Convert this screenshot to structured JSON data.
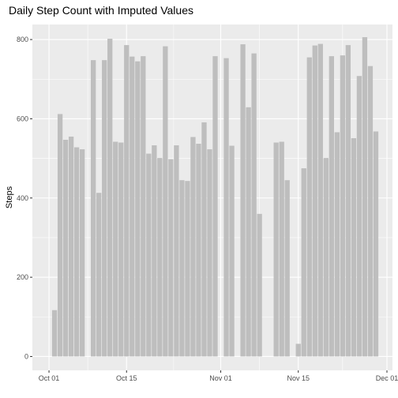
{
  "chart_data": {
    "type": "bar",
    "title": "Daily Step Count with Imputed Values",
    "xlabel": "",
    "ylabel": "Steps",
    "ylim": [
      -35,
      838
    ],
    "yticks": [
      0,
      200,
      400,
      600,
      800
    ],
    "ytick_labels": [
      "0",
      "200",
      "400",
      "600",
      "800"
    ],
    "xlim": [
      "2012-09-28",
      "2012-12-02"
    ],
    "xticks": [
      "2012-10-01",
      "2012-10-15",
      "2012-11-01",
      "2012-11-15",
      "2012-12-01"
    ],
    "xtick_labels": [
      "Oct 01",
      "Oct 15",
      "Nov 01",
      "Nov 15",
      "Dec 01"
    ],
    "grid": true,
    "bar_color": "#bebebe",
    "panel_color": "#ebebeb",
    "x": [
      "2012-10-01",
      "2012-10-02",
      "2012-10-03",
      "2012-10-04",
      "2012-10-05",
      "2012-10-06",
      "2012-10-07",
      "2012-10-08",
      "2012-10-09",
      "2012-10-10",
      "2012-10-11",
      "2012-10-12",
      "2012-10-13",
      "2012-10-14",
      "2012-10-15",
      "2012-10-16",
      "2012-10-17",
      "2012-10-18",
      "2012-10-19",
      "2012-10-20",
      "2012-10-21",
      "2012-10-22",
      "2012-10-23",
      "2012-10-24",
      "2012-10-25",
      "2012-10-26",
      "2012-10-27",
      "2012-10-28",
      "2012-10-29",
      "2012-10-30",
      "2012-10-31",
      "2012-11-01",
      "2012-11-02",
      "2012-11-03",
      "2012-11-04",
      "2012-11-05",
      "2012-11-06",
      "2012-11-07",
      "2012-11-08",
      "2012-11-09",
      "2012-11-10",
      "2012-11-11",
      "2012-11-12",
      "2012-11-13",
      "2012-11-14",
      "2012-11-15",
      "2012-11-16",
      "2012-11-17",
      "2012-11-18",
      "2012-11-19",
      "2012-11-20",
      "2012-11-21",
      "2012-11-22",
      "2012-11-23",
      "2012-11-24",
      "2012-11-25",
      "2012-11-26",
      "2012-11-27",
      "2012-11-28",
      "2012-11-29",
      "2012-11-30"
    ],
    "values": [
      0,
      117,
      612,
      547,
      555,
      528,
      523,
      0,
      748,
      413,
      748,
      802,
      542,
      540,
      786,
      757,
      745,
      758,
      512,
      533,
      501,
      783,
      498,
      533,
      445,
      443,
      554,
      537,
      591,
      523,
      758,
      0,
      753,
      532,
      0,
      788,
      629,
      765,
      360,
      0,
      0,
      540,
      542,
      445,
      0,
      32,
      475,
      755,
      785,
      789,
      501,
      758,
      566,
      760,
      786,
      551,
      708,
      806,
      733,
      568,
      0
    ]
  }
}
